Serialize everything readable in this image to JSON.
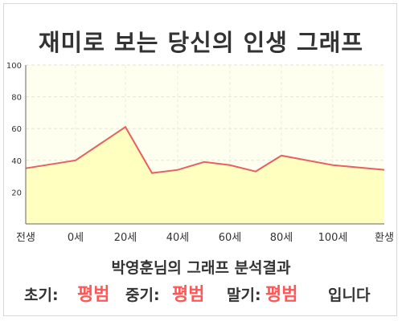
{
  "title": "재미로 보는 당신의 인생 그래프",
  "chart_data": {
    "type": "area",
    "x": [
      "전생",
      "0세",
      "20세",
      "40세",
      "60세",
      "80세",
      "100세",
      "환생"
    ],
    "points": [
      {
        "x": "전생",
        "y": 35
      },
      {
        "x": "0세",
        "y": 40
      },
      {
        "x": "20세",
        "y": 61
      },
      {
        "x": "30세",
        "y": 32
      },
      {
        "x": "40세",
        "y": 34
      },
      {
        "x": "50세",
        "y": 39
      },
      {
        "x": "60세",
        "y": 37
      },
      {
        "x": "70세",
        "y": 33
      },
      {
        "x": "80세",
        "y": 43
      },
      {
        "x": "90세",
        "y": 40
      },
      {
        "x": "100세",
        "y": 37
      },
      {
        "x": "환생",
        "y": 34
      }
    ],
    "ylim": [
      0,
      100
    ],
    "yticks": [
      20,
      40,
      60,
      80,
      100
    ],
    "grid": true,
    "colors": {
      "line": "#e86060",
      "fill": "#ffffc0",
      "plot_bg": "#fffff0"
    }
  },
  "summary": "박영훈님의 그래프 분석결과",
  "verdict": {
    "early_label": "초기:",
    "early_value": "평범",
    "mid_label": "중기:",
    "mid_value": "평범",
    "late_label": "말기:",
    "late_value": "평범",
    "ending": "입니다"
  }
}
